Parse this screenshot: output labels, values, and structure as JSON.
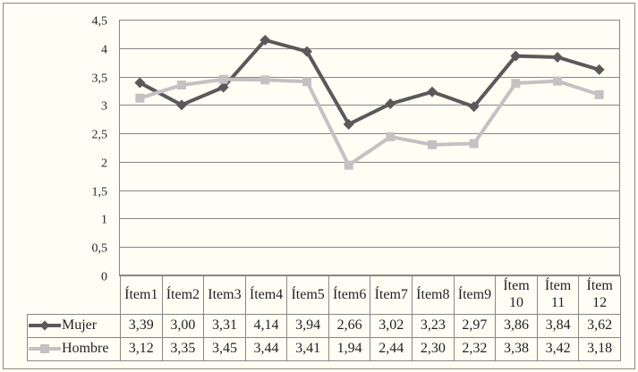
{
  "chart_data": {
    "type": "line",
    "title": "",
    "xlabel": "",
    "ylabel": "",
    "categories": [
      "Ítem1",
      "Ítem2",
      "Item3",
      "Ítem4",
      "Ítem5",
      "Ítem6",
      "Ítem7",
      "Ítem8",
      "Ítem9",
      "Ítem 10",
      "Ítem 11",
      "Ítem 12"
    ],
    "series": [
      {
        "name": "Mujer",
        "marker": "diamond",
        "color": "#595959",
        "values": [
          3.39,
          3.0,
          3.31,
          4.14,
          3.94,
          2.66,
          3.02,
          3.23,
          2.97,
          3.86,
          3.84,
          3.62
        ],
        "display_values": [
          "3,39",
          "3,00",
          "3,31",
          "4,14",
          "3,94",
          "2,66",
          "3,02",
          "3,23",
          "2,97",
          "3,86",
          "3,84",
          "3,62"
        ]
      },
      {
        "name": "Hombre",
        "marker": "square",
        "color": "#c2c2c2",
        "values": [
          3.12,
          3.35,
          3.45,
          3.44,
          3.41,
          1.94,
          2.44,
          2.3,
          2.32,
          3.38,
          3.42,
          3.18
        ],
        "display_values": [
          "3,12",
          "3,35",
          "3,45",
          "3,44",
          "3,41",
          "1,94",
          "2,44",
          "2,30",
          "2,32",
          "3,38",
          "3,42",
          "3,18"
        ]
      }
    ],
    "y_axis": {
      "min": 0,
      "max": 4.5,
      "step": 0.5,
      "tick_labels_top_to_bottom": [
        "4,5",
        "4",
        "3,5",
        "3",
        "2,5",
        "2",
        "1,5",
        "1",
        "0,5",
        "0"
      ]
    },
    "grid": "horizontal",
    "legend_position": "table-left",
    "colors": {
      "background": "#fffef5",
      "frame_border": "#8b8b80",
      "grid": "#878787",
      "plot_border": "#878787",
      "text": "#1f1f1f"
    }
  }
}
